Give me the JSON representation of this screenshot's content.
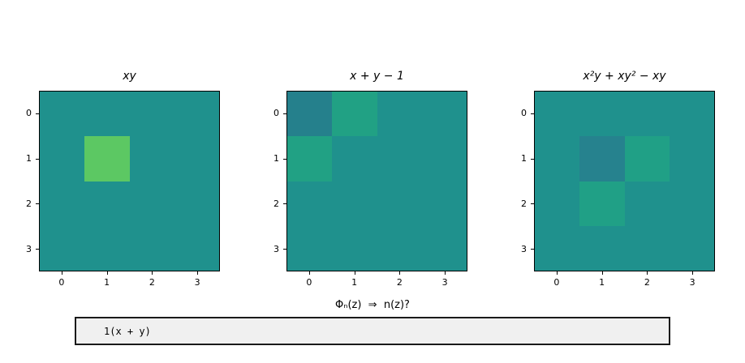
{
  "figure": {
    "background": "#ffffff",
    "question_label": "Φₙ(z)  ⇒  n(z)?",
    "answer_input": {
      "value": "1(x + y)",
      "background": "#f0f0f0"
    }
  },
  "chart_data": [
    {
      "type": "heatmap",
      "title": "xy",
      "x_ticks": [
        "0",
        "1",
        "2",
        "3"
      ],
      "y_ticks": [
        "0",
        "1",
        "2",
        "3"
      ],
      "x_range": [
        -0.5,
        3.5
      ],
      "y_range": [
        3.5,
        -0.5
      ],
      "grid": false,
      "values": [
        [
          0,
          0,
          0,
          0
        ],
        [
          0,
          1,
          0,
          0
        ],
        [
          0,
          0,
          0,
          0
        ],
        [
          0,
          0,
          0,
          0
        ]
      ],
      "colors": {
        "0": "#1f918d",
        "1": "#5cc863"
      }
    },
    {
      "type": "heatmap",
      "title": "x + y − 1",
      "x_ticks": [
        "0",
        "1",
        "2",
        "3"
      ],
      "y_ticks": [
        "0",
        "1",
        "2",
        "3"
      ],
      "x_range": [
        -0.5,
        3.5
      ],
      "y_range": [
        3.5,
        -0.5
      ],
      "grid": false,
      "values": [
        [
          -1,
          1,
          0,
          0
        ],
        [
          1,
          0,
          0,
          0
        ],
        [
          0,
          0,
          0,
          0
        ],
        [
          0,
          0,
          0,
          0
        ]
      ],
      "colors": {
        "-1": "#25808c",
        "0": "#1f918d",
        "1": "#21a184"
      }
    },
    {
      "type": "heatmap",
      "title": "x²y + xy² − xy",
      "x_ticks": [
        "0",
        "1",
        "2",
        "3"
      ],
      "y_ticks": [
        "0",
        "1",
        "2",
        "3"
      ],
      "x_range": [
        -0.5,
        3.5
      ],
      "y_range": [
        3.5,
        -0.5
      ],
      "grid": false,
      "values": [
        [
          0,
          0,
          0,
          0
        ],
        [
          0,
          -1,
          1,
          0
        ],
        [
          0,
          1,
          0,
          0
        ],
        [
          0,
          0,
          0,
          0
        ]
      ],
      "colors": {
        "-1": "#26828e",
        "0": "#1f918d",
        "1": "#20a086"
      }
    }
  ]
}
